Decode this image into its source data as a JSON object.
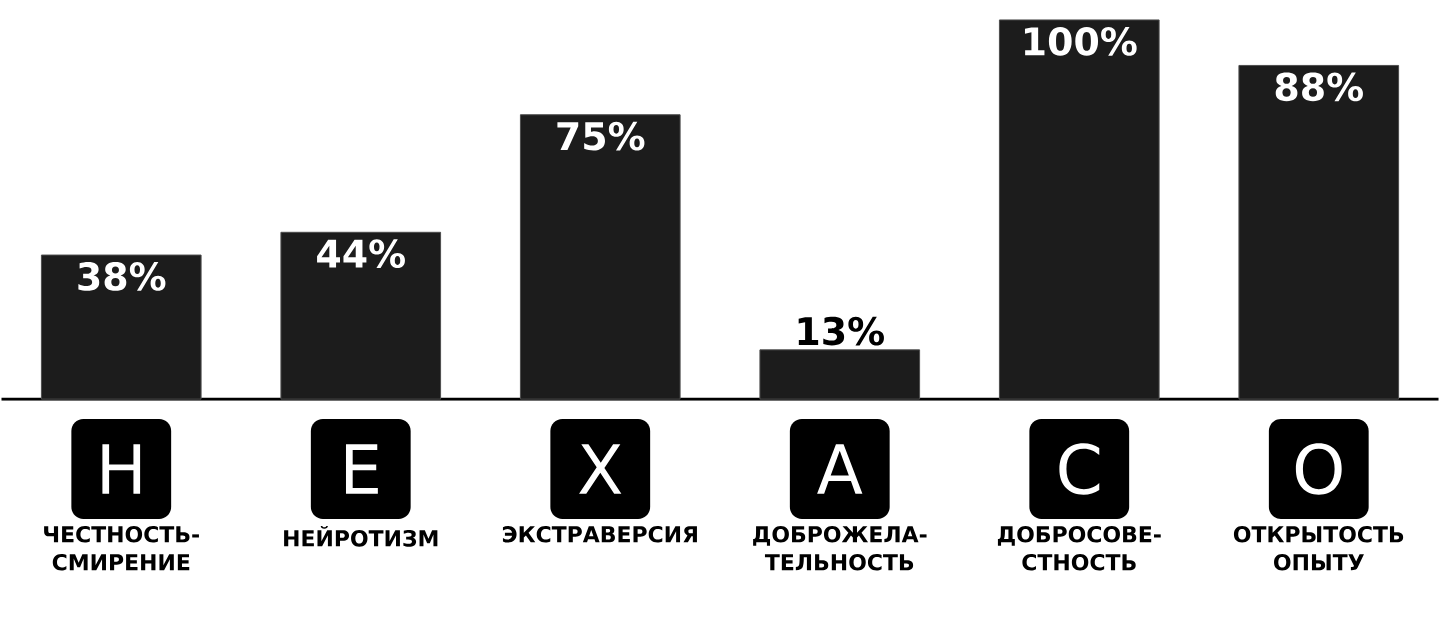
{
  "chart_data": {
    "type": "bar",
    "categories": [
      "ЧЕСТНОСТЬ-СМИРЕНИЕ",
      "НЕЙРОТИЗМ",
      "ЭКСТРАВЕРСИЯ",
      "ДОБРОЖЕЛА-ТЕЛЬНОСТЬ",
      "ДОБРОСОВЕ-СТНОСТЬ",
      "ОТКРЫТОСТЬ ОПЫТУ"
    ],
    "values": [
      38,
      44,
      75,
      13,
      100,
      88
    ],
    "value_labels": [
      "38%",
      "44%",
      "75%",
      "13%",
      "100%",
      "88%"
    ],
    "color": "#1c1c1c",
    "ylim": [
      0,
      100
    ],
    "tick_labels": "x",
    "annotations": [
      "H",
      "E",
      "X",
      "A",
      "C",
      "O"
    ]
  }
}
